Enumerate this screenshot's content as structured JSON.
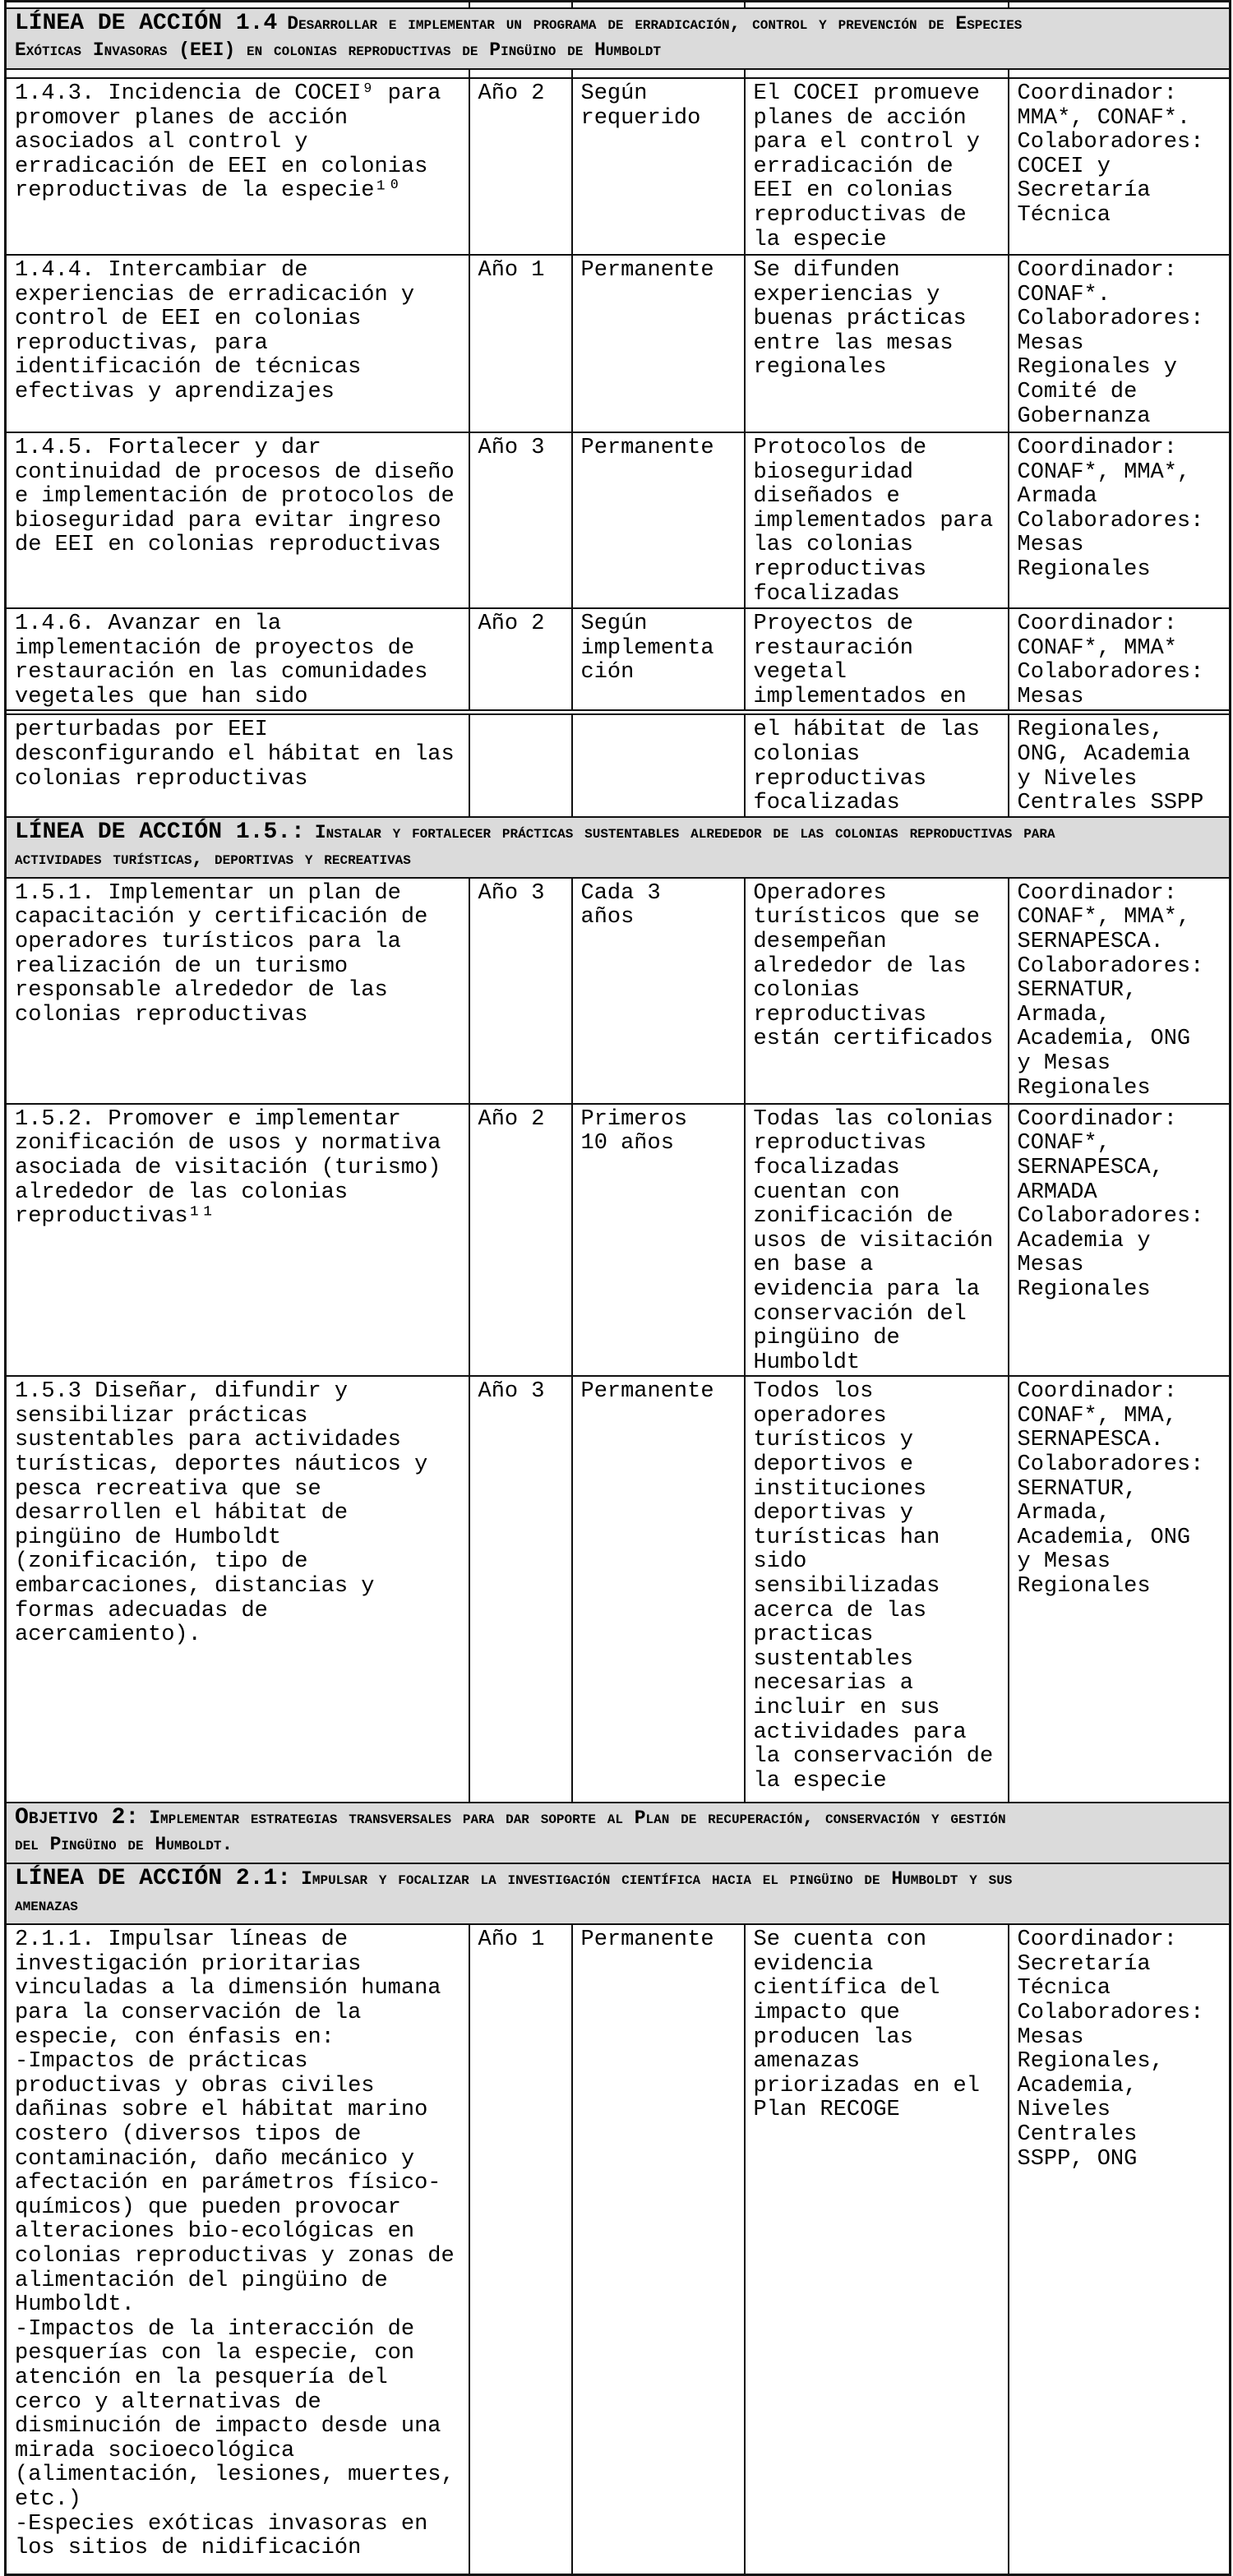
{
  "bands": {
    "linea14": {
      "prefix": "LÍNEA DE ACCIÓN 1.4",
      "rest": "Desarrollar e implementar un programa de erradicación, control y prevención de Especies\nExóticas Invasoras (EEI) en colonias reproductivas de Pingüino de Humboldt"
    },
    "linea15": {
      "prefix": "LÍNEA DE ACCIÓN 1.5.:",
      "rest": "Instalar y fortalecer prácticas sustentables alrededor de las colonias reproductivas para\nactividades turísticas, deportivas y recreativas"
    },
    "objetivo2": {
      "prefix": "Objetivo 2:",
      "rest": "Implementar estrategias transversales para dar soporte al Plan de recuperación, conservación y gestión\ndel Pingüino de Humboldt."
    },
    "linea21": {
      "prefix": "LÍNEA DE ACCIÓN 2.1:",
      "rest": "Impulsar y focalizar la investigación científica hacia el pingüino de Humboldt y sus\namenazas"
    }
  },
  "rows": {
    "r143": {
      "action": "1.4.3. Incidencia de COCEI⁹ para\npromover planes de acción\nasociados al control y\nerradicación de EEI en colonias\nreproductivas de la especie¹⁰",
      "year": "Año 2",
      "freq": "Según\nrequerido",
      "indicator": "El COCEI promueve\nplanes de acción\npara el control y\nerradicación de\nEEI en colonias\nreproductivas de\nla especie",
      "responsible": "Coordinador:\nMMA*, CONAF*.\nColaboradores:\nCOCEI y\nSecretaría\nTécnica"
    },
    "r144": {
      "action": "1.4.4. Intercambiar de\nexperiencias de erradicación y\ncontrol de EEI en colonias\nreproductivas, para\nidentificación de técnicas\nefectivas y aprendizajes",
      "year": "Año 1",
      "freq": "Permanente",
      "indicator": "Se difunden\nexperiencias y\nbuenas prácticas\nentre las mesas\nregionales",
      "responsible": "Coordinador:\nCONAF*.\nColaboradores:\nMesas\nRegionales y\nComité de\nGobernanza"
    },
    "r145": {
      "action": "1.4.5. Fortalecer y dar\ncontinuidad de procesos de diseño\ne implementación de protocolos de\nbioseguridad para evitar ingreso\nde EEI en colonias reproductivas",
      "year": "Año 3",
      "freq": "Permanente",
      "indicator": "Protocolos de\nbioseguridad\ndiseñados e\nimplementados para\nlas colonias\nreproductivas\nfocalizadas",
      "responsible": "Coordinador:\nCONAF*, MMA*,\nArmada\nColaboradores:\nMesas\nRegionales"
    },
    "r146a": {
      "action": "1.4.6. Avanzar en la\nimplementación de proyectos de\nrestauración en las comunidades\nvegetales que han sido",
      "year": "Año 2",
      "freq": "Según\nimplementa\nción",
      "indicator": "Proyectos de\nrestauración\nvegetal\nimplementados en",
      "responsible": "Coordinador:\nCONAF*, MMA*\nColaboradores:\nMesas"
    },
    "r146b": {
      "action": "perturbadas por EEI\ndesconfigurando el hábitat en las\ncolonias reproductivas",
      "year": "",
      "freq": "",
      "indicator": "el hábitat de las\ncolonias\nreproductivas\nfocalizadas",
      "responsible": "Regionales,\nONG, Academia\ny Niveles\nCentrales SSPP"
    },
    "r151": {
      "action": "1.5.1. Implementar un plan de\ncapacitación y certificación de\noperadores turísticos para la\nrealización de un turismo\nresponsable alrededor de las\ncolonias reproductivas",
      "year": "Año 3",
      "freq": "Cada 3\naños",
      "indicator": "Operadores\nturísticos que se\ndesempeñan\nalrededor de las\ncolonias\nreproductivas\nestán certificados",
      "responsible": "Coordinador:\nCONAF*, MMA*,\nSERNAPESCA.\nColaboradores:\nSERNATUR,\nArmada,\nAcademia, ONG\ny Mesas\nRegionales"
    },
    "r152": {
      "action": "1.5.2. Promover e implementar\nzonificación de usos y normativa\nasociada de visitación (turismo)\nalrededor de las colonias\nreproductivas¹¹",
      "year": "Año 2",
      "freq": "Primeros\n10 años",
      "indicator": "Todas las colonias\nreproductivas\nfocalizadas\ncuentan con\nzonificación de\nusos de visitación\nen base a\nevidencia para la\nconservación del\npingüino de\nHumboldt",
      "responsible": "Coordinador:\nCONAF*,\nSERNAPESCA,\nARMADA\nColaboradores:\nAcademia y\nMesas\nRegionales"
    },
    "r153": {
      "action": "1.5.3 Diseñar, difundir y\nsensibilizar prácticas\nsustentables para actividades\nturísticas, deportes náuticos y\npesca recreativa que se\ndesarrollen el hábitat de\npingüino de Humboldt\n(zonificación, tipo de\nembarcaciones, distancias y\nformas adecuadas de\nacercamiento).",
      "year": "Año 3",
      "freq": "Permanente",
      "indicator": "Todos los\noperadores\nturísticos y\ndeportivos e\ninstituciones\ndeportivas y\nturísticas han\nsido\nsensibilizadas\nacerca de las\npracticas\nsustentables\nnecesarias a\nincluir en sus\nactividades para\nla conservación de\nla especie",
      "responsible": "Coordinador:\nCONAF*, MMA,\nSERNAPESCA.\nColaboradores:\nSERNATUR,\nArmada,\nAcademia, ONG\ny Mesas\nRegionales"
    },
    "r211": {
      "action": "2.1.1. Impulsar líneas de\ninvestigación prioritarias\nvinculadas a la dimensión humana\npara la conservación de la\nespecie, con énfasis en:\n-Impactos de prácticas\nproductivas y obras civiles\ndañinas sobre el hábitat marino\ncostero (diversos tipos de\ncontaminación, daño mecánico y\nafectación en parámetros físico-\nquímicos) que pueden provocar\nalteraciones bio-ecológicas en\ncolonias reproductivas y zonas de\nalimentación del pingüino de\nHumboldt.\n-Impactos de la interacción de\npesquerías con la especie, con\natención en la pesquería del\ncerco y alternativas de\ndisminución de impacto desde una\nmirada socioecológica\n(alimentación, lesiones, muertes,\netc.)\n-Especies exóticas invasoras en\nlos sitios de nidificación",
      "year": "Año 1",
      "freq": "Permanente",
      "indicator": "Se cuenta con\nevidencia\ncientífica del\nimpacto que\nproducen las\namenazas\npriorizadas en el\nPlan RECOGE",
      "responsible": "Coordinador:\nSecretaría\nTécnica\nColaboradores:\nMesas\nRegionales,\nAcademia,\nNiveles\nCentrales\nSSPP, ONG"
    }
  }
}
